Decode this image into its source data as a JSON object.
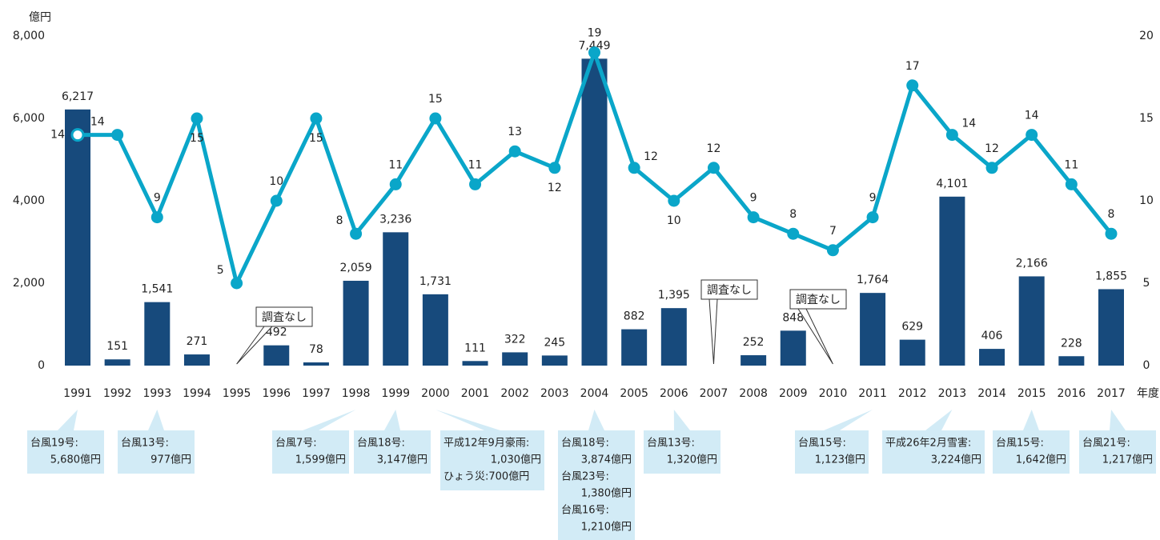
{
  "chart_data": {
    "type": "bar",
    "y_label": "億円",
    "x_label": "年度",
    "categories": [
      "1991",
      "1992",
      "1993",
      "1994",
      "1995",
      "1996",
      "1997",
      "1998",
      "1999",
      "2000",
      "2001",
      "2002",
      "2003",
      "2004",
      "2005",
      "2006",
      "2007",
      "2008",
      "2009",
      "2010",
      "2011",
      "2012",
      "2013",
      "2014",
      "2015",
      "2016",
      "2017"
    ],
    "series": [
      {
        "type": "bar",
        "color": "#174a7c",
        "values": [
          6217,
          151,
          1541,
          271,
          null,
          492,
          78,
          2059,
          3236,
          1731,
          111,
          322,
          245,
          7449,
          882,
          1395,
          null,
          252,
          848,
          null,
          1764,
          629,
          4101,
          406,
          2166,
          228,
          1855
        ],
        "value_labels": [
          "6,217",
          "151",
          "1,541",
          "271",
          null,
          "492",
          "78",
          "2,059",
          "3,236",
          "1,731",
          "111",
          "322",
          "245",
          "7,449",
          "882",
          "1,395",
          null,
          "252",
          "848",
          null,
          "1,764",
          "629",
          "4,101",
          "406",
          "2,166",
          "228",
          "1,855"
        ]
      },
      {
        "type": "line",
        "color": "#0aa6c9",
        "axis": "y2",
        "values": [
          14,
          14,
          9,
          15,
          5,
          10,
          15,
          8,
          11,
          15,
          11,
          13,
          12,
          19,
          12,
          10,
          12,
          9,
          8,
          7,
          9,
          17,
          14,
          12,
          14,
          11,
          8
        ]
      }
    ],
    "ylim": [
      0,
      8000
    ],
    "yticks": [
      0,
      {
        "value": 2000,
        "label": "2,000"
      },
      {
        "value": 4000,
        "label": "4,000"
      },
      {
        "value": 6000,
        "label": "6,000"
      },
      {
        "value": 8000,
        "label": "8,000"
      }
    ],
    "y2lim": [
      0,
      20
    ],
    "y2ticks": [
      0,
      5,
      10,
      15,
      20
    ],
    "no_survey": [
      "調査なし",
      "調査なし",
      "調査なし"
    ],
    "notes": [
      [
        "台風19号:",
        "5,680億円"
      ],
      [
        "台風13号:",
        "977億円"
      ],
      [
        "台風7号:",
        "1,599億円"
      ],
      [
        "台風18号:",
        "3,147億円"
      ],
      [
        "平成12年9月豪雨:",
        "1,030億円",
        "ひょう災:700億円"
      ],
      [
        "台風18号:",
        "3,874億円",
        "台風23号:",
        "1,380億円",
        "台風16号:",
        "1,210億円"
      ],
      [
        "台風13号:",
        "1,320億円"
      ],
      [
        "台風15号:",
        "1,123億円"
      ],
      [
        "平成26年2月雪害:",
        "3,224億円"
      ],
      [
        "台風15号:",
        "1,642億円"
      ],
      [
        "台風21号:",
        "1,217億円"
      ]
    ]
  }
}
